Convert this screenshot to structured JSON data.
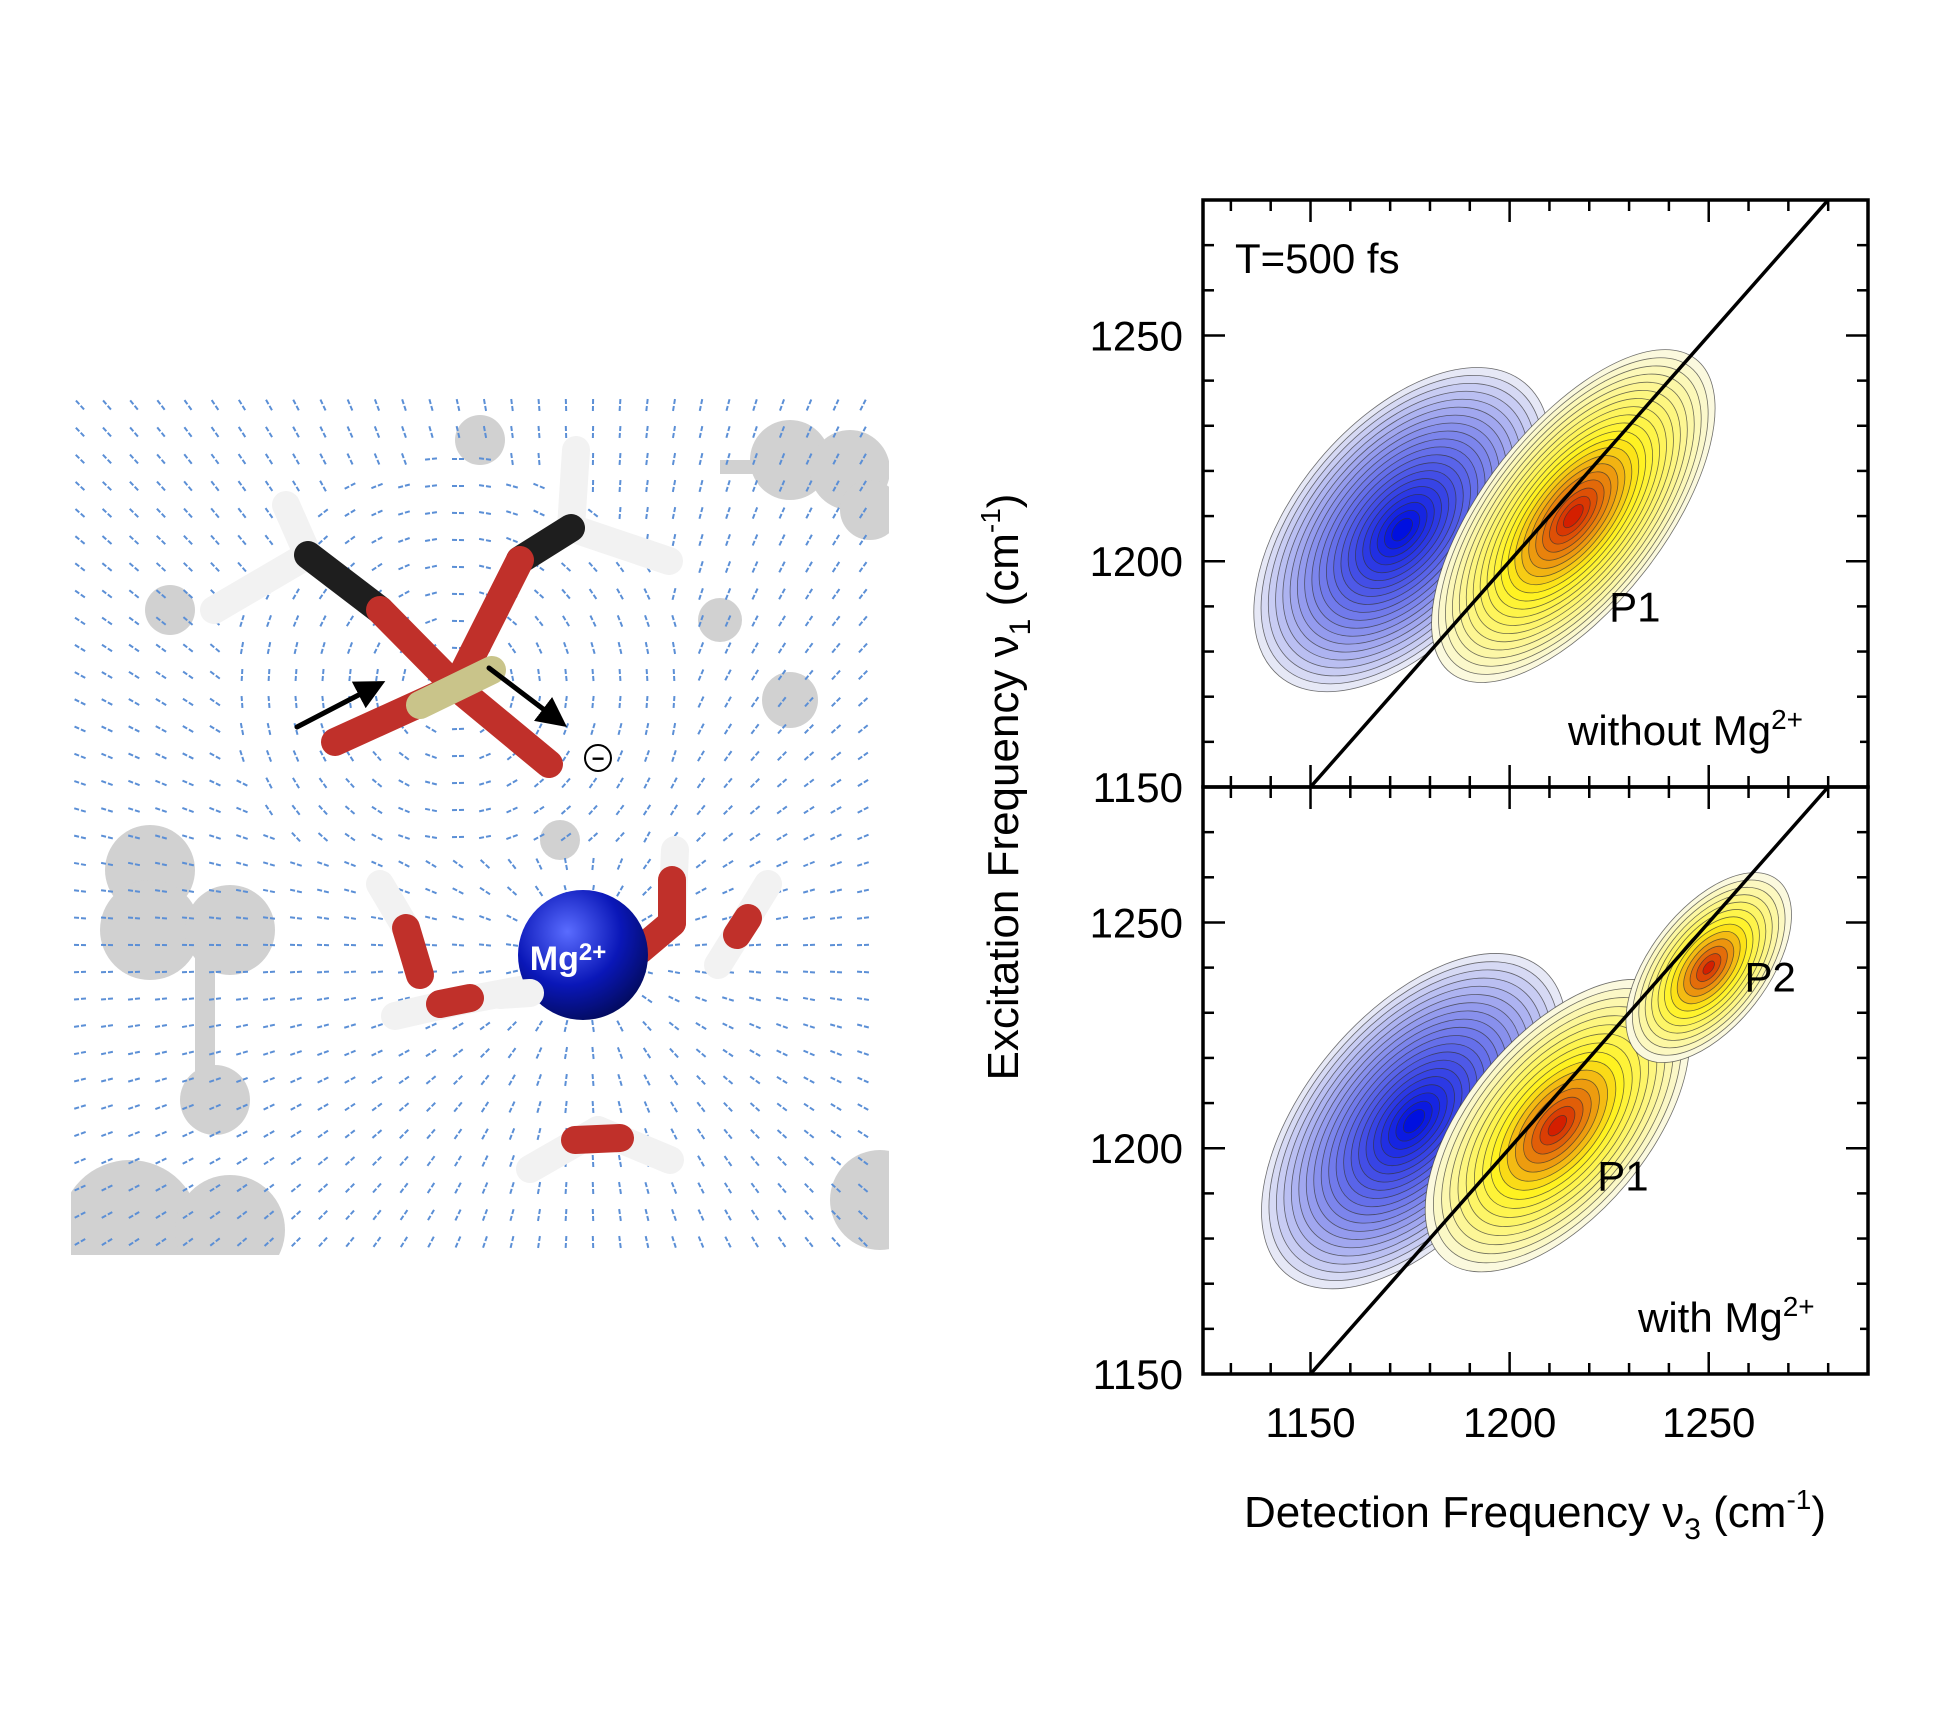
{
  "molecule_panel": {
    "ion_label": "Mg",
    "ion_charge": "2+",
    "anion_charge_symbol": "−",
    "colors": {
      "field": "#5b8fd6",
      "oxygen": "#c0302a",
      "hydrogen": "#f2f2f2",
      "carbon": "#1e1e1e",
      "phosphorus": "#c9c48a",
      "magnesium": "#0a17b8",
      "background_atoms": "#9a9a9a"
    }
  },
  "chart_data": {
    "type": "heatmap",
    "subtype": "2D-IR contour",
    "xlabel": "Detection Frequency ν",
    "xlabel_sub": "3",
    "xlabel_unit_pre": " (cm",
    "xlabel_unit_sup": "-1",
    "xlabel_unit_post": ")",
    "ylabel": "Excitation Frequency ν",
    "ylabel_sub": "1",
    "ylabel_unit_pre": " (cm",
    "ylabel_unit_sup": "-1",
    "ylabel_unit_post": ")",
    "xlim": [
      1123,
      1290
    ],
    "ylim": [
      1150,
      1280
    ],
    "xticks": [
      1150,
      1200,
      1250
    ],
    "xtick_labels": [
      "1150",
      "1200",
      "1250"
    ],
    "yticks": [
      1150,
      1200,
      1250
    ],
    "ytick_labels": [
      "1150",
      "1200",
      "1250"
    ],
    "minor_tick_step": 10,
    "diagonal": {
      "from": [
        1150,
        1150
      ],
      "to": [
        1280,
        1280
      ]
    },
    "annotation_time": "T=500 fs",
    "panels": [
      {
        "name": "without-mg",
        "label": "without Mg",
        "label_sup": "2+",
        "peaks": [
          {
            "sign": "negative",
            "x": 1173,
            "y": 1207,
            "rx": 48,
            "ry": 24,
            "angle": 50,
            "levels": 20
          },
          {
            "sign": "positive",
            "x": 1216,
            "y": 1210,
            "rx": 50,
            "ry": 20,
            "angle": 52,
            "levels": 20,
            "label": "P1",
            "label_at": [
              1225,
              1190
            ]
          }
        ]
      },
      {
        "name": "with-mg",
        "label": "with Mg",
        "label_sup": "2+",
        "peaks": [
          {
            "sign": "negative",
            "x": 1176,
            "y": 1206,
            "rx": 50,
            "ry": 24,
            "angle": 50,
            "levels": 20
          },
          {
            "sign": "positive",
            "x": 1212,
            "y": 1205,
            "rx": 44,
            "ry": 20,
            "angle": 50,
            "levels": 16,
            "label": "P1",
            "label_at": [
              1222,
              1194
            ]
          },
          {
            "sign": "positive",
            "x": 1250,
            "y": 1240,
            "rx": 28,
            "ry": 13,
            "angle": 52,
            "levels": 13,
            "label": "P2",
            "label_at": [
              1259,
              1238
            ]
          }
        ]
      }
    ],
    "colors": {
      "negative_max": "#0010e0",
      "negative_min": "#e6e8f6",
      "positive_min": "#fbf9de",
      "positive_mid": "#fff21a",
      "positive_max": "#d41f00"
    }
  }
}
